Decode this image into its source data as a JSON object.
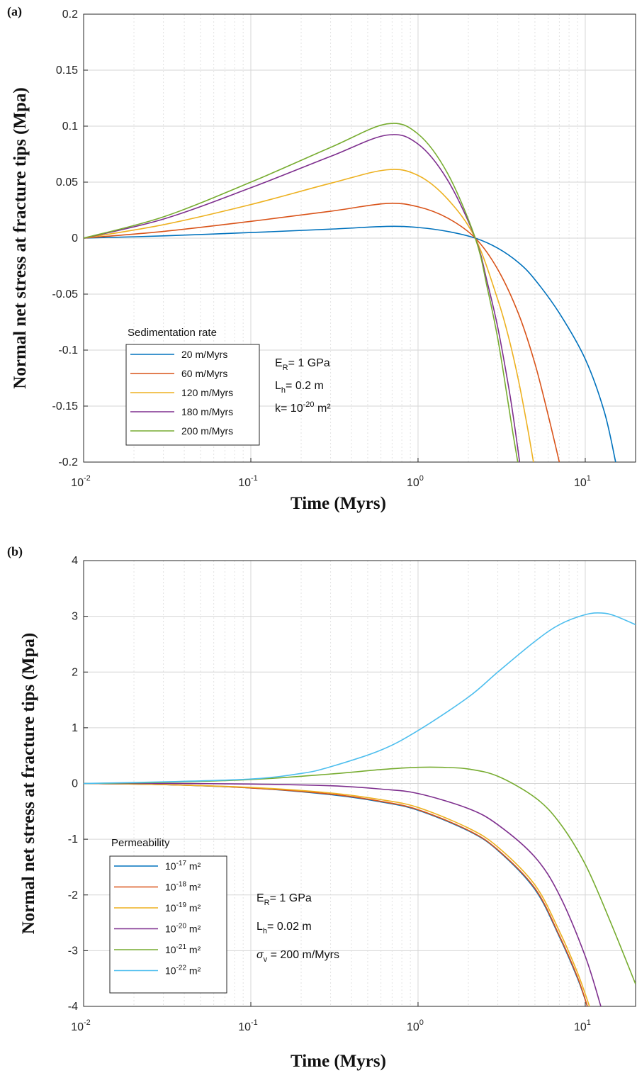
{
  "chart_data": [
    {
      "panel": "(a)",
      "type": "line",
      "xscale": "log",
      "xlim": [
        0.01,
        20
      ],
      "ylim": [
        -0.2,
        0.2
      ],
      "yticks": [
        "0.2",
        "0.15",
        "0.1",
        "0.05",
        "0",
        "-0.05",
        "-0.1",
        "-0.15",
        "-0.2"
      ],
      "yticks_values": [
        0.2,
        0.15,
        0.1,
        0.05,
        0,
        -0.05,
        -0.1,
        -0.15,
        -0.2
      ],
      "xticks": [
        {
          "base": "10",
          "exp": "-2"
        },
        {
          "base": "10",
          "exp": "-1"
        },
        {
          "base": "10",
          "exp": "0"
        },
        {
          "base": "10",
          "exp": "1"
        }
      ],
      "xlabel": "Time (Myrs)",
      "ylabel": "Normal net stress at fracture tips (Mpa)",
      "grid": true,
      "legend_title": "Sedimentation rate",
      "legend_position": "bottom-left",
      "annotations": [
        {
          "main": "E",
          "sub": "R",
          "rest": "= 1 GPa"
        },
        {
          "main": "L",
          "sub": "h",
          "rest": "= 0.2   m"
        },
        {
          "main": "k= 10",
          "sup": "-20",
          "rest": " m²"
        }
      ],
      "series": [
        {
          "name": "20 m/Myrs",
          "color": "#0072BD",
          "x": [
            0.01,
            0.03,
            0.1,
            0.3,
            0.65,
            1.0,
            1.5,
            2.2,
            3.0,
            4.0,
            5.0,
            7.0,
            10.0,
            13.0,
            15.2
          ],
          "y": [
            0,
            0.002,
            0.005,
            0.008,
            0.0105,
            0.0095,
            0.006,
            0.0,
            -0.009,
            -0.022,
            -0.037,
            -0.067,
            -0.108,
            -0.155,
            -0.2
          ]
        },
        {
          "name": "60 m/Myrs",
          "color": "#D95319",
          "x": [
            0.01,
            0.03,
            0.1,
            0.3,
            0.65,
            1.0,
            1.5,
            2.2,
            3.0,
            4.0,
            5.0,
            6.0,
            7.0
          ],
          "y": [
            0,
            0.006,
            0.015,
            0.024,
            0.031,
            0.028,
            0.018,
            0.0,
            -0.028,
            -0.068,
            -0.112,
            -0.158,
            -0.2
          ]
        },
        {
          "name": "120 m/Myrs",
          "color": "#EDB120",
          "x": [
            0.01,
            0.03,
            0.1,
            0.3,
            0.65,
            1.0,
            1.5,
            2.2,
            3.0,
            3.5,
            4.0,
            4.5,
            4.9
          ],
          "y": [
            0,
            0.012,
            0.03,
            0.049,
            0.061,
            0.056,
            0.035,
            0.0,
            -0.055,
            -0.09,
            -0.128,
            -0.168,
            -0.2
          ]
        },
        {
          "name": "180 m/Myrs",
          "color": "#7E2F8E",
          "x": [
            0.01,
            0.03,
            0.1,
            0.3,
            0.65,
            1.0,
            1.5,
            2.2,
            2.6,
            3.0,
            3.5,
            3.8,
            4.05
          ],
          "y": [
            0,
            0.017,
            0.045,
            0.073,
            0.092,
            0.084,
            0.052,
            0.0,
            -0.04,
            -0.08,
            -0.135,
            -0.17,
            -0.2
          ]
        },
        {
          "name": "200 m/Myrs",
          "color": "#77AC30",
          "x": [
            0.01,
            0.03,
            0.1,
            0.3,
            0.65,
            1.0,
            1.5,
            2.2,
            2.6,
            3.0,
            3.4,
            3.7,
            3.95
          ],
          "y": [
            0,
            0.019,
            0.05,
            0.081,
            0.102,
            0.093,
            0.058,
            0.0,
            -0.045,
            -0.09,
            -0.14,
            -0.175,
            -0.2
          ]
        }
      ]
    },
    {
      "panel": "(b)",
      "type": "line",
      "xscale": "log",
      "xlim": [
        0.01,
        20
      ],
      "ylim": [
        -4,
        4
      ],
      "yticks": [
        "4",
        "3",
        "2",
        "1",
        "0",
        "-1",
        "-2",
        "-3",
        "-4"
      ],
      "yticks_values": [
        4,
        3,
        2,
        1,
        0,
        -1,
        -2,
        -3,
        -4
      ],
      "xticks": [
        {
          "base": "10",
          "exp": "-2"
        },
        {
          "base": "10",
          "exp": "-1"
        },
        {
          "base": "10",
          "exp": "0"
        },
        {
          "base": "10",
          "exp": "1"
        }
      ],
      "xlabel": "Time (Myrs)",
      "ylabel": "Normal net stress at fracture tips (Mpa)",
      "grid": true,
      "legend_title": "Permeability",
      "legend_position": "bottom-left",
      "annotations": [
        {
          "main": "E",
          "sub": "R",
          "rest": "= 1 GPa"
        },
        {
          "main": "L",
          "sub": "h",
          "rest": "= 0.02 m"
        },
        {
          "main": "σ",
          "sub": "v",
          "rest": " = 200 m/Myrs"
        }
      ],
      "series": [
        {
          "name": "10⁻¹⁷ m²",
          "label_base": "10",
          "label_exp": "-17",
          "label_unit": " m²",
          "color": "#0072BD",
          "x": [
            0.01,
            0.03,
            0.1,
            0.3,
            0.6,
            1.0,
            2.0,
            3.0,
            5.0,
            7.0,
            9.0,
            10.3
          ],
          "y": [
            0,
            -0.02,
            -0.08,
            -0.2,
            -0.33,
            -0.48,
            -0.85,
            -1.2,
            -1.9,
            -2.75,
            -3.5,
            -4
          ]
        },
        {
          "name": "10⁻¹⁸ m²",
          "label_base": "10",
          "label_exp": "-18",
          "label_unit": " m²",
          "color": "#D95319",
          "x": [
            0.01,
            0.03,
            0.1,
            0.3,
            0.6,
            1.0,
            2.0,
            3.0,
            5.0,
            7.0,
            9.0,
            10.3
          ],
          "y": [
            0,
            -0.02,
            -0.08,
            -0.19,
            -0.32,
            -0.47,
            -0.84,
            -1.19,
            -1.88,
            -2.73,
            -3.48,
            -4
          ]
        },
        {
          "name": "10⁻¹⁹ m²",
          "label_base": "10",
          "label_exp": "-19",
          "label_unit": " m²",
          "color": "#EDB120",
          "x": [
            0.01,
            0.03,
            0.1,
            0.3,
            0.6,
            1.0,
            2.0,
            3.0,
            5.0,
            7.0,
            9.0,
            10.6
          ],
          "y": [
            0,
            -0.02,
            -0.07,
            -0.17,
            -0.29,
            -0.43,
            -0.8,
            -1.14,
            -1.82,
            -2.65,
            -3.4,
            -4
          ]
        },
        {
          "name": "10⁻²⁰ m²",
          "label_base": "10",
          "label_exp": "-20",
          "label_unit": " m²",
          "color": "#7E2F8E",
          "x": [
            0.01,
            0.03,
            0.1,
            0.3,
            0.6,
            1.0,
            2.0,
            3.0,
            5.0,
            7.0,
            10.0,
            12.4
          ],
          "y": [
            0,
            0,
            -0.01,
            -0.04,
            -0.1,
            -0.18,
            -0.45,
            -0.74,
            -1.32,
            -2.0,
            -3.1,
            -4
          ]
        },
        {
          "name": "10⁻²¹ m²",
          "label_base": "10",
          "label_exp": "-21",
          "label_unit": " m²",
          "color": "#77AC30",
          "x": [
            0.01,
            0.03,
            0.1,
            0.3,
            0.6,
            1.0,
            1.4,
            2.0,
            3.0,
            5.0,
            7.0,
            10.0,
            14.0,
            20.0
          ],
          "y": [
            0,
            0.02,
            0.07,
            0.17,
            0.25,
            0.29,
            0.29,
            0.26,
            0.13,
            -0.25,
            -0.7,
            -1.45,
            -2.45,
            -3.6
          ]
        },
        {
          "name": "10⁻²² m²",
          "label_base": "10",
          "label_exp": "-22",
          "label_unit": " m²",
          "color": "#4DBEEE",
          "x": [
            0.01,
            0.03,
            0.1,
            0.2,
            0.3,
            0.6,
            1.0,
            2.0,
            3.0,
            5.0,
            7.0,
            10.0,
            12.5,
            15.0,
            20.0
          ],
          "y": [
            0,
            0.03,
            0.08,
            0.18,
            0.3,
            0.6,
            0.95,
            1.55,
            2.0,
            2.55,
            2.85,
            3.03,
            3.06,
            3.01,
            2.85
          ]
        }
      ]
    }
  ]
}
